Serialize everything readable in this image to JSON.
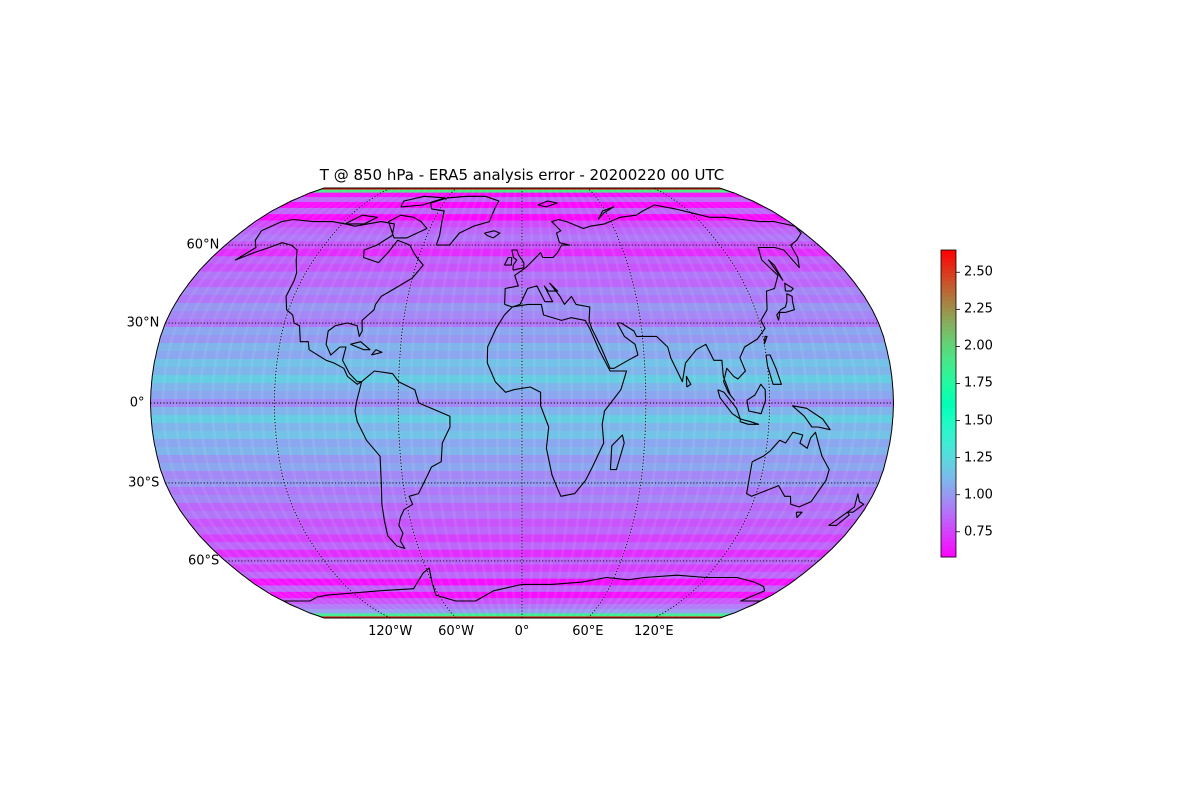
{
  "title": "T @ 850 hPa - ERA5 analysis error - 20200220 00 UTC",
  "map": {
    "projection": "Robinson",
    "central_longitude": 0,
    "extent_lat": [
      -90,
      90
    ],
    "extent_lon": [
      -180,
      180
    ],
    "gridlines": {
      "style": "dotted",
      "color": "#000000",
      "lats": [
        -60,
        -30,
        0,
        30,
        60
      ],
      "lons": [
        -120,
        -60,
        0,
        60,
        120
      ]
    },
    "lat_labels": [
      {
        "lat": 60,
        "text": "60°N"
      },
      {
        "lat": 30,
        "text": "30°N"
      },
      {
        "lat": 0,
        "text": "0°"
      },
      {
        "lat": -30,
        "text": "30°S"
      },
      {
        "lat": -60,
        "text": "60°S"
      }
    ],
    "lon_labels": [
      {
        "lon": -120,
        "text": "120°W"
      },
      {
        "lon": -60,
        "text": "60°W"
      },
      {
        "lon": 0,
        "text": "0°"
      },
      {
        "lon": 60,
        "text": "60°E"
      },
      {
        "lon": 120,
        "text": "120°E"
      }
    ],
    "coastline_color": "#000000"
  },
  "colorbar": {
    "colormap": "rainbow",
    "min": 0.58,
    "max": 2.65,
    "ticks": [
      0.75,
      1.0,
      1.25,
      1.5,
      1.75,
      2.0,
      2.25,
      2.5
    ],
    "tick_labels": [
      "0.75",
      "1.00",
      "1.25",
      "1.50",
      "1.75",
      "2.00",
      "2.25",
      "2.50"
    ]
  },
  "field": {
    "units_of_latitude_bands": "degrees",
    "bands": [
      {
        "lat": 90,
        "value": 2.6
      },
      {
        "lat": 87,
        "value": 1.9
      },
      {
        "lat": 84,
        "value": 0.6
      },
      {
        "lat": 81,
        "value": 0.85
      },
      {
        "lat": 78,
        "value": 0.6
      },
      {
        "lat": 75,
        "value": 0.85
      },
      {
        "lat": 72,
        "value": 0.6
      },
      {
        "lat": 69,
        "value": 0.78
      },
      {
        "lat": 66,
        "value": 0.85
      },
      {
        "lat": 63,
        "value": 0.9
      },
      {
        "lat": 60,
        "value": 0.8
      },
      {
        "lat": 57,
        "value": 0.7
      },
      {
        "lat": 54,
        "value": 0.85
      },
      {
        "lat": 51,
        "value": 0.8
      },
      {
        "lat": 48,
        "value": 0.9
      },
      {
        "lat": 45,
        "value": 0.85
      },
      {
        "lat": 42,
        "value": 0.95
      },
      {
        "lat": 39,
        "value": 0.9
      },
      {
        "lat": 36,
        "value": 1.0
      },
      {
        "lat": 33,
        "value": 0.95
      },
      {
        "lat": 30,
        "value": 0.9
      },
      {
        "lat": 27,
        "value": 1.05
      },
      {
        "lat": 24,
        "value": 1.0
      },
      {
        "lat": 21,
        "value": 1.1
      },
      {
        "lat": 18,
        "value": 1.05
      },
      {
        "lat": 15,
        "value": 1.15
      },
      {
        "lat": 12,
        "value": 1.1
      },
      {
        "lat": 9,
        "value": 1.2
      },
      {
        "lat": 6,
        "value": 1.1
      },
      {
        "lat": 3,
        "value": 1.05
      },
      {
        "lat": 0,
        "value": 0.95
      },
      {
        "lat": -3,
        "value": 1.1
      },
      {
        "lat": -6,
        "value": 1.2
      },
      {
        "lat": -9,
        "value": 1.1
      },
      {
        "lat": -12,
        "value": 1.15
      },
      {
        "lat": -15,
        "value": 1.05
      },
      {
        "lat": -18,
        "value": 1.1
      },
      {
        "lat": -21,
        "value": 1.0
      },
      {
        "lat": -24,
        "value": 1.05
      },
      {
        "lat": -27,
        "value": 0.95
      },
      {
        "lat": -30,
        "value": 1.0
      },
      {
        "lat": -33,
        "value": 0.9
      },
      {
        "lat": -36,
        "value": 0.95
      },
      {
        "lat": -39,
        "value": 0.85
      },
      {
        "lat": -42,
        "value": 0.9
      },
      {
        "lat": -45,
        "value": 0.8
      },
      {
        "lat": -48,
        "value": 0.85
      },
      {
        "lat": -51,
        "value": 0.75
      },
      {
        "lat": -54,
        "value": 0.85
      },
      {
        "lat": -57,
        "value": 0.7
      },
      {
        "lat": -60,
        "value": 0.85
      },
      {
        "lat": -63,
        "value": 0.75
      },
      {
        "lat": -66,
        "value": 0.85
      },
      {
        "lat": -69,
        "value": 0.62
      },
      {
        "lat": -72,
        "value": 0.85
      },
      {
        "lat": -75,
        "value": 0.62
      },
      {
        "lat": -78,
        "value": 0.8
      },
      {
        "lat": -81,
        "value": 0.9
      },
      {
        "lat": -84,
        "value": 1.0
      },
      {
        "lat": -87,
        "value": 1.85
      },
      {
        "lat": -90,
        "value": 2.6
      }
    ]
  }
}
